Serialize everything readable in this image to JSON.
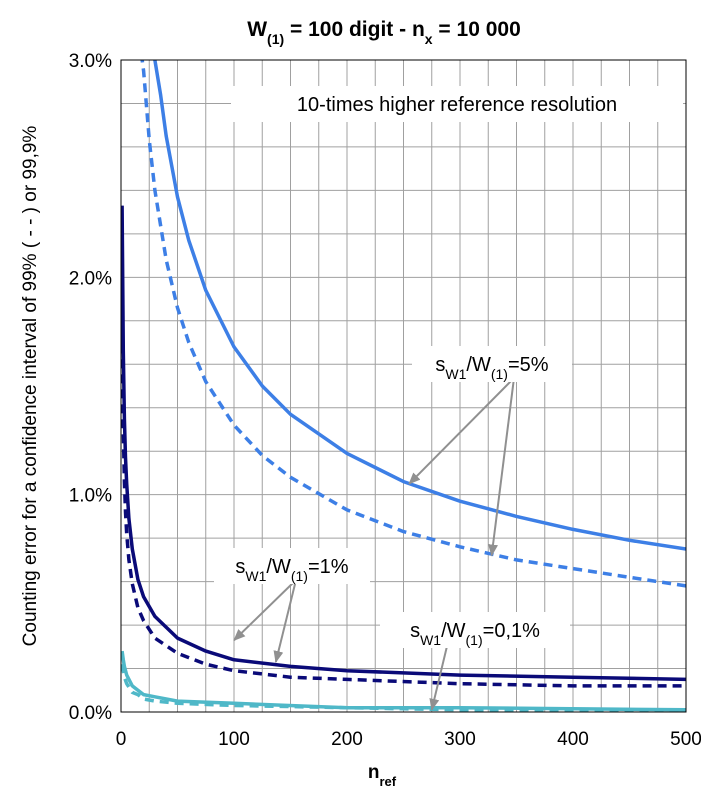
{
  "chart_data": {
    "type": "line",
    "title": {
      "main": "W",
      "main_sub": "(1)",
      "rest1": " = 100 digit  -  n",
      "rest1_sub": "x",
      "rest2": " = 10 000"
    },
    "xlabel": {
      "main": "n",
      "sub": "ref"
    },
    "ylabel": "Counting error for a confidence interval of 99% ( - - ) or 99,9%",
    "xlim": [
      0,
      500
    ],
    "ylim": [
      0,
      0.03
    ],
    "x_ticks": [
      {
        "value": 0,
        "label": "0"
      },
      {
        "value": 100,
        "label": "100"
      },
      {
        "value": 200,
        "label": "200"
      },
      {
        "value": 300,
        "label": "300"
      },
      {
        "value": 400,
        "label": "400"
      },
      {
        "value": 500,
        "label": "500"
      }
    ],
    "y_ticks": [
      {
        "value": 0,
        "label": "0.0%"
      },
      {
        "value": 0.01,
        "label": "1.0%"
      },
      {
        "value": 0.02,
        "label": "2.0%"
      },
      {
        "value": 0.03,
        "label": "3.0%"
      }
    ],
    "grid": true,
    "colors": {
      "sw5": "#3d7fe6",
      "sw1": "#0a0a78",
      "sw01": "#4fb8c8",
      "grid": "#a0a0a0",
      "arrow": "#909090"
    },
    "series": [
      {
        "group": "sw5",
        "style": "solid",
        "x": [
          29,
          35,
          40,
          50,
          60,
          75,
          100,
          125,
          150,
          200,
          250,
          300,
          350,
          400,
          450,
          500
        ],
        "y": [
          0.0303,
          0.0284,
          0.0265,
          0.0237,
          0.0217,
          0.0194,
          0.0168,
          0.015,
          0.0137,
          0.0119,
          0.0106,
          0.0097,
          0.009,
          0.0084,
          0.0079,
          0.0075
        ]
      },
      {
        "group": "sw5",
        "style": "dashed",
        "x": [
          18,
          20,
          25,
          30,
          40,
          50,
          60,
          75,
          100,
          125,
          150,
          200,
          250,
          300,
          350,
          400,
          450,
          500
        ],
        "y": [
          0.0303,
          0.0295,
          0.0263,
          0.024,
          0.0208,
          0.0186,
          0.017,
          0.0152,
          0.0132,
          0.0118,
          0.0108,
          0.0093,
          0.0083,
          0.0076,
          0.007,
          0.0066,
          0.0062,
          0.0058
        ]
      },
      {
        "group": "sw1",
        "style": "solid",
        "x": [
          1,
          2,
          3,
          4,
          5,
          7,
          10,
          15,
          20,
          30,
          50,
          75,
          100,
          150,
          200,
          300,
          400,
          500
        ],
        "y": [
          0.0233,
          0.0166,
          0.0135,
          0.0117,
          0.0105,
          0.0089,
          0.0075,
          0.0061,
          0.0053,
          0.0044,
          0.0034,
          0.0028,
          0.0024,
          0.0021,
          0.0019,
          0.0017,
          0.0016,
          0.0015
        ]
      },
      {
        "group": "sw1",
        "style": "dashed",
        "x": [
          1,
          2,
          3,
          4,
          5,
          7,
          10,
          15,
          20,
          30,
          50,
          75,
          100,
          150,
          200,
          300,
          400,
          500
        ],
        "y": [
          0.0183,
          0.013,
          0.0106,
          0.0092,
          0.0082,
          0.007,
          0.0059,
          0.0048,
          0.0042,
          0.0034,
          0.0027,
          0.0022,
          0.0019,
          0.0016,
          0.0015,
          0.0013,
          0.0012,
          0.0012
        ]
      },
      {
        "group": "sw01",
        "style": "solid",
        "x": [
          1,
          2,
          3,
          5,
          10,
          15,
          20,
          30,
          50,
          100,
          200,
          300,
          500
        ],
        "y": [
          0.0028,
          0.0024,
          0.0021,
          0.0017,
          0.0012,
          0.001,
          0.0008,
          0.0007,
          0.0005,
          0.0004,
          0.0002,
          0.0002,
          0.0001
        ]
      },
      {
        "group": "sw01",
        "style": "dashed",
        "x": [
          1,
          2,
          3,
          5,
          10,
          15,
          20,
          30,
          50,
          100,
          200,
          300,
          500
        ],
        "y": [
          0.0022,
          0.0019,
          0.0016,
          0.0013,
          0.0009,
          0.0008,
          0.0006,
          0.0005,
          0.0004,
          0.0003,
          0.0002,
          0.0001,
          0.0001
        ]
      }
    ],
    "annotations": [
      {
        "text_a": "s",
        "text_sub1": "W1",
        "text_b": "/W",
        "text_sub2": "(1)",
        "text_c": "=5%",
        "arrow_targets": [
          {
            "x": 255,
            "y": 0.0105
          },
          {
            "x": 328,
            "y": 0.0072
          }
        ]
      },
      {
        "text_a": "s",
        "text_sub1": "W1",
        "text_b": "/W",
        "text_sub2": "(1)",
        "text_c": "=1%",
        "arrow_targets": [
          {
            "x": 100,
            "y": 0.0033
          },
          {
            "x": 137,
            "y": 0.0023
          }
        ]
      },
      {
        "text_a": "s",
        "text_sub1": "W1",
        "text_b": "/W",
        "text_sub2": "(1)",
        "text_c": "=0,1%",
        "arrow_targets": [
          {
            "x": 275,
            "y": 0.0001
          }
        ]
      }
    ],
    "inset_label": "10-times higher reference resolution"
  }
}
